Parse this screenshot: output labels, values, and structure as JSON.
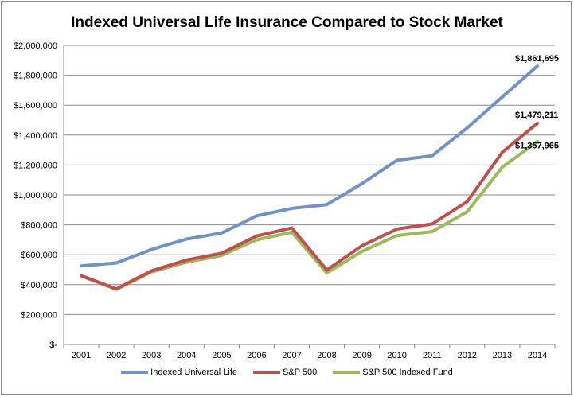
{
  "chart_data": {
    "type": "line",
    "title": "Indexed Universal Life Insurance Compared to Stock Market",
    "xlabel": "",
    "ylabel": "",
    "x": [
      "2001",
      "2002",
      "2003",
      "2004",
      "2005",
      "2006",
      "2007",
      "2008",
      "2009",
      "2010",
      "2011",
      "2012",
      "2013",
      "2014"
    ],
    "ylim": [
      0,
      2000000
    ],
    "yticks": [
      0,
      200000,
      400000,
      600000,
      800000,
      1000000,
      1200000,
      1400000,
      1600000,
      1800000,
      2000000
    ],
    "ytick_labels": [
      "$-",
      "$200,000",
      "$400,000",
      "$600,000",
      "$800,000",
      "$1,000,000",
      "$1,200,000",
      "$1,400,000",
      "$1,600,000",
      "$1,800,000",
      "$2,000,000"
    ],
    "grid": true,
    "legend_position": "bottom",
    "series": [
      {
        "name": "Indexed Universal Life",
        "color": "#6f93c7",
        "values": [
          525000,
          545000,
          635000,
          705000,
          745000,
          860000,
          910000,
          935000,
          1075000,
          1232000,
          1262000,
          1448000,
          1655000,
          1861695
        ],
        "end_label": "$1,861,695"
      },
      {
        "name": "S&P 500",
        "color": "#c0504d",
        "values": [
          460000,
          372000,
          492000,
          565000,
          610000,
          725000,
          780000,
          498000,
          660000,
          772000,
          806000,
          955000,
          1285000,
          1479211
        ],
        "end_label": "$1,479,211"
      },
      {
        "name": "S&P 500 Indexed Fund",
        "color": "#9bbb59",
        "values": [
          458000,
          368000,
          484000,
          550000,
          595000,
          700000,
          750000,
          478000,
          622000,
          728000,
          755000,
          888000,
          1185000,
          1357965
        ],
        "end_label": "$1,357,965"
      }
    ]
  }
}
